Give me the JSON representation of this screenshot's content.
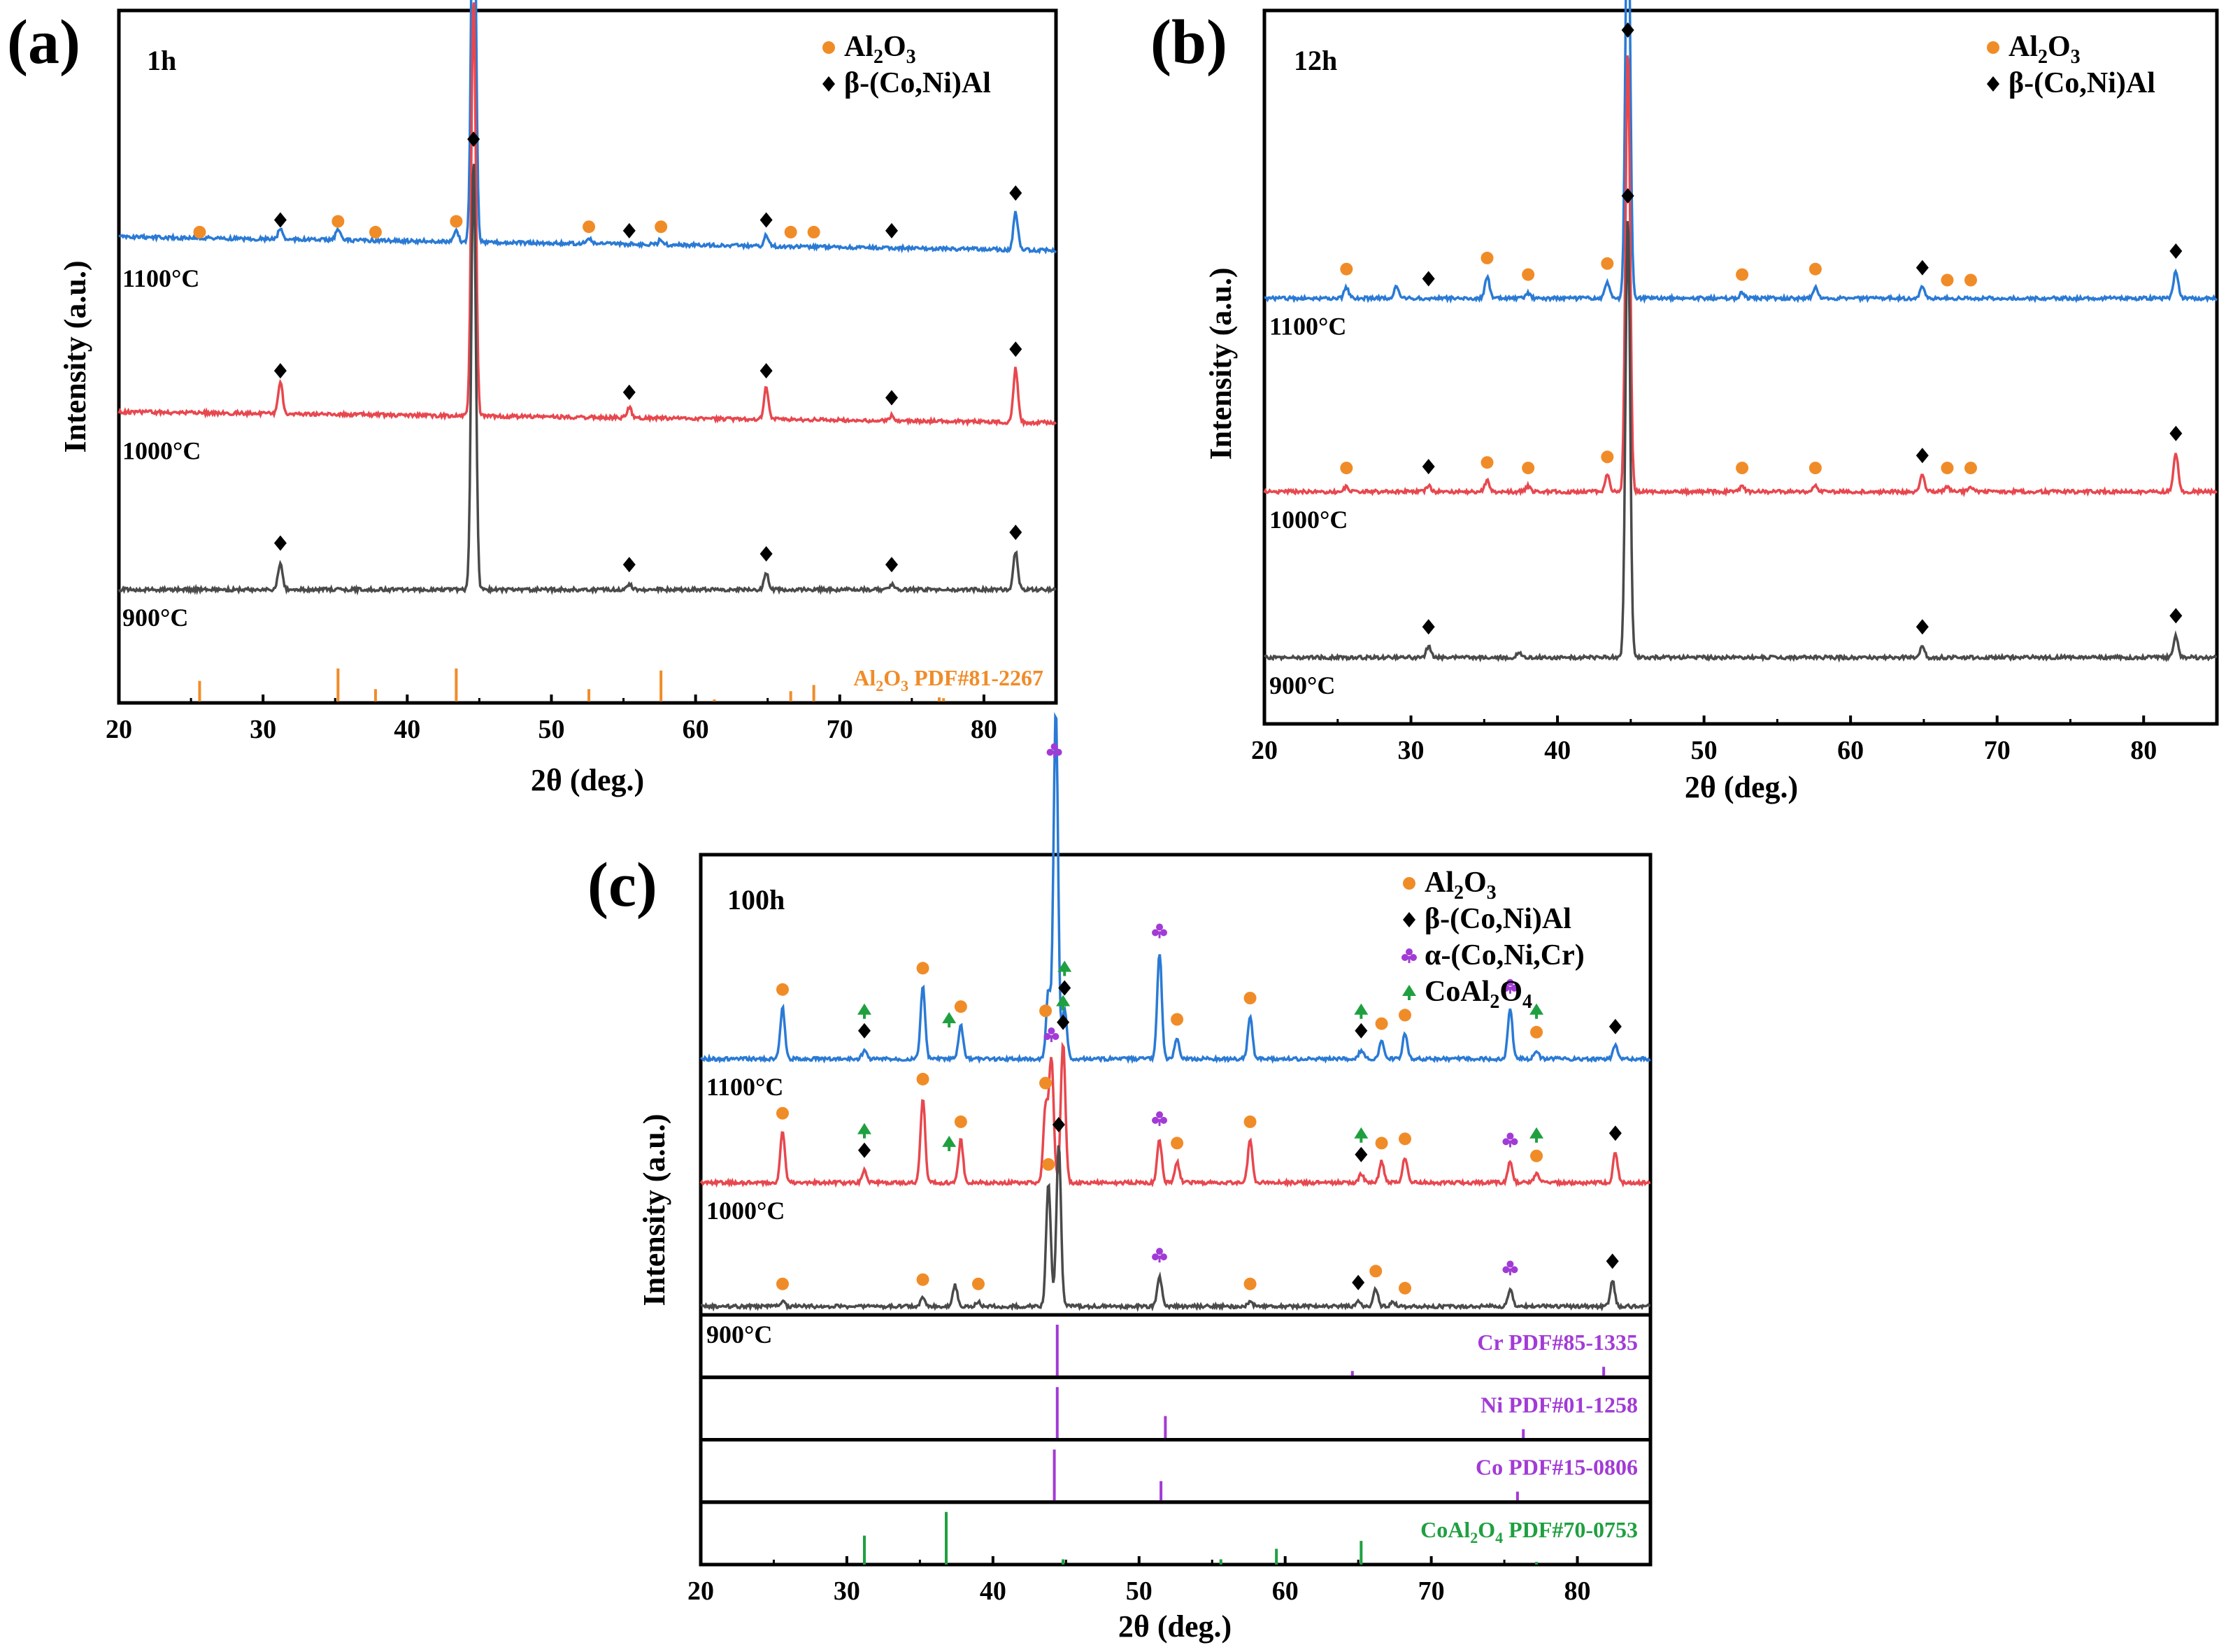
{
  "chart_data": [
    {
      "panel_label": "(a)",
      "type": "line",
      "time_label": "1h",
      "xlabel": "2θ (deg.)",
      "ylabel": "Intensity (a.u.)",
      "xlim": [
        20,
        85
      ],
      "xticks": [
        "20",
        "30",
        "40",
        "50",
        "60",
        "70",
        "80"
      ],
      "legend": [
        {
          "marker": "circle",
          "label": "Al",
          "sub": [
            "2",
            "3"
          ],
          "mid": "O",
          "text": "Al₂O₃",
          "color": "#f08c28"
        },
        {
          "marker": "diamond",
          "label": "β-(Co,Ni)Al",
          "color": "#000000"
        }
      ],
      "series": [
        {
          "name": "1100°C",
          "color": "#2a7ad5",
          "baseline_frac": 0.73,
          "slope_frac": 0.025,
          "peaks": [
            [
              31.2,
              0.02
            ],
            [
              35.2,
              0.02
            ],
            [
              43.4,
              0.02
            ],
            [
              44.6,
              0.8
            ],
            [
              52.6,
              0.01
            ],
            [
              57.6,
              0.01
            ],
            [
              64.9,
              0.02
            ],
            [
              82.2,
              0.07
            ]
          ]
        },
        {
          "name": "1000°C",
          "color": "#e8474e",
          "baseline_frac": 0.41,
          "slope_frac": 0.02,
          "peaks": [
            [
              31.2,
              0.06
            ],
            [
              44.6,
              0.78
            ],
            [
              55.4,
              0.02
            ],
            [
              64.9,
              0.06
            ],
            [
              73.6,
              0.01
            ],
            [
              82.2,
              0.1
            ]
          ]
        },
        {
          "name": "900°C",
          "color": "#4a4a4a",
          "baseline_frac": 0.1,
          "slope_frac": 0.0,
          "peaks": [
            [
              31.2,
              0.05
            ],
            [
              44.6,
              0.8
            ],
            [
              55.4,
              0.01
            ],
            [
              64.9,
              0.03
            ],
            [
              73.6,
              0.01
            ],
            [
              82.2,
              0.07
            ]
          ]
        }
      ],
      "markers": [
        {
          "series": "1100°C",
          "al2o3": [
            25.6,
            35.2,
            37.8,
            43.4,
            52.6,
            57.6,
            66.6,
            68.2
          ],
          "beta": [
            31.2,
            44.6,
            55.4,
            64.9,
            73.6,
            82.2
          ]
        },
        {
          "series": "1000°C",
          "al2o3": [],
          "beta": [
            31.2,
            44.6,
            55.4,
            64.9,
            73.6,
            82.2
          ]
        },
        {
          "series": "900°C",
          "al2o3": [],
          "beta": [
            31.2,
            44.6,
            55.4,
            64.9,
            73.6,
            82.2
          ]
        }
      ],
      "reference": [
        {
          "label": "Al",
          "sub": [
            "2",
            "3"
          ],
          "text": "Al₂O₃ PDF#81-2267",
          "mid": "O",
          "tail": " PDF#81-2267",
          "color": "#f08c28",
          "lines": [
            [
              25.6,
              0.5
            ],
            [
              35.2,
              0.8
            ],
            [
              37.8,
              0.3
            ],
            [
              43.4,
              0.8
            ],
            [
              52.6,
              0.3
            ],
            [
              57.6,
              0.75
            ],
            [
              61.3,
              0.05
            ],
            [
              66.6,
              0.25
            ],
            [
              68.2,
              0.4
            ],
            [
              76.9,
              0.1
            ],
            [
              77.2,
              0.08
            ]
          ]
        }
      ]
    },
    {
      "panel_label": "(b)",
      "type": "line",
      "time_label": "12h",
      "xlabel": "2θ (deg.)",
      "ylabel": "Intensity (a.u.)",
      "xlim": [
        20,
        85
      ],
      "xticks": [
        "20",
        "30",
        "40",
        "50",
        "60",
        "70",
        "80"
      ],
      "legend": [
        {
          "marker": "circle",
          "label": "Al",
          "sub": [
            "2",
            "3"
          ],
          "mid": "O",
          "text": "Al₂O₃",
          "color": "#f08c28"
        },
        {
          "marker": "diamond",
          "label": "β-(Co,Ni)Al",
          "color": "#000000"
        }
      ],
      "series": [
        {
          "name": "1100°C",
          "color": "#2a7ad5",
          "baseline_frac": 0.65,
          "slope_frac": 0.0,
          "peaks": [
            [
              25.6,
              0.02
            ],
            [
              29.0,
              0.02
            ],
            [
              35.2,
              0.04
            ],
            [
              38.0,
              0.01
            ],
            [
              43.4,
              0.03
            ],
            [
              44.8,
              0.8
            ],
            [
              52.6,
              0.01
            ],
            [
              57.6,
              0.02
            ],
            [
              64.9,
              0.02
            ],
            [
              82.2,
              0.05
            ]
          ]
        },
        {
          "name": "1000°C",
          "color": "#e8474e",
          "baseline_frac": 0.3,
          "slope_frac": 0.0,
          "peaks": [
            [
              25.6,
              0.01
            ],
            [
              31.2,
              0.01
            ],
            [
              35.2,
              0.02
            ],
            [
              38.0,
              0.01
            ],
            [
              43.4,
              0.03
            ],
            [
              44.8,
              0.8
            ],
            [
              52.6,
              0.01
            ],
            [
              57.6,
              0.01
            ],
            [
              64.9,
              0.03
            ],
            [
              66.6,
              0.01
            ],
            [
              68.2,
              0.01
            ],
            [
              82.2,
              0.07
            ]
          ]
        },
        {
          "name": "900°C",
          "color": "#4a4a4a",
          "baseline_frac": 0.0,
          "slope_frac": 0.0,
          "peaks": [
            [
              31.2,
              0.02
            ],
            [
              37.4,
              0.01
            ],
            [
              44.8,
              0.8
            ],
            [
              64.9,
              0.02
            ],
            [
              82.2,
              0.04
            ]
          ]
        }
      ],
      "markers": [
        {
          "series": "1100°C",
          "al2o3": [
            25.6,
            35.2,
            38.0,
            43.4,
            52.6,
            57.6,
            66.6,
            68.2
          ],
          "beta": [
            31.2,
            44.8,
            64.9,
            82.2
          ]
        },
        {
          "series": "1000°C",
          "al2o3": [
            25.6,
            35.2,
            38.0,
            43.4,
            52.6,
            57.6,
            66.6,
            68.2
          ],
          "beta": [
            31.2,
            44.8,
            64.9,
            82.2
          ]
        },
        {
          "series": "900°C",
          "al2o3": [],
          "beta": [
            31.2,
            44.8,
            64.9,
            82.2
          ]
        }
      ],
      "reference": []
    },
    {
      "panel_label": "(c)",
      "type": "line",
      "time_label": "100h",
      "xlabel": "2θ (deg.)",
      "ylabel": "Intensity (a.u.)",
      "xlim": [
        20,
        85
      ],
      "xticks": [
        "20",
        "30",
        "40",
        "50",
        "60",
        "70",
        "80"
      ],
      "legend": [
        {
          "marker": "circle",
          "label": "Al",
          "sub": [
            "2",
            "3"
          ],
          "mid": "O",
          "text": "Al₂O₃",
          "color": "#f08c28"
        },
        {
          "marker": "diamond",
          "label": "β-(Co,Ni)Al",
          "color": "#000000"
        },
        {
          "marker": "club",
          "label": "α-(Co,Ni,Cr)",
          "color": "#a23bd6"
        },
        {
          "marker": "spade",
          "label": "CoAl",
          "sub": [
            "2",
            "4"
          ],
          "mid": "O",
          "text": "CoAl₂O₄",
          "color": "#1fa040"
        }
      ],
      "series": [
        {
          "name": "1100°C",
          "color": "#2a7ad5",
          "baseline_frac": 0.6,
          "slope_frac": 0.0,
          "peaks": [
            [
              25.6,
              0.12
            ],
            [
              31.2,
              0.02
            ],
            [
              35.2,
              0.17
            ],
            [
              37.8,
              0.08
            ],
            [
              43.8,
              0.16
            ],
            [
              44.3,
              0.82
            ],
            [
              44.9,
              0.12
            ],
            [
              51.4,
              0.25
            ],
            [
              52.6,
              0.05
            ],
            [
              57.6,
              0.1
            ],
            [
              65.2,
              0.02
            ],
            [
              66.6,
              0.04
            ],
            [
              68.2,
              0.06
            ],
            [
              75.4,
              0.12
            ],
            [
              77.2,
              0.02
            ],
            [
              82.6,
              0.03
            ]
          ]
        },
        {
          "name": "1000°C",
          "color": "#e8474e",
          "baseline_frac": 0.31,
          "slope_frac": 0.0,
          "peaks": [
            [
              25.6,
              0.12
            ],
            [
              31.2,
              0.03
            ],
            [
              35.2,
              0.2
            ],
            [
              37.8,
              0.1
            ],
            [
              43.6,
              0.18
            ],
            [
              44.0,
              0.29
            ],
            [
              44.8,
              0.33
            ],
            [
              51.4,
              0.1
            ],
            [
              52.6,
              0.05
            ],
            [
              57.6,
              0.1
            ],
            [
              65.2,
              0.02
            ],
            [
              66.6,
              0.05
            ],
            [
              68.2,
              0.06
            ],
            [
              75.4,
              0.05
            ],
            [
              77.2,
              0.02
            ],
            [
              82.6,
              0.07
            ]
          ]
        },
        {
          "name": "900°C",
          "color": "#4a4a4a",
          "baseline_frac": 0.02,
          "slope_frac": 0.0,
          "peaks": [
            [
              25.6,
              0.01
            ],
            [
              35.2,
              0.02
            ],
            [
              37.4,
              0.05
            ],
            [
              39.0,
              0.01
            ],
            [
              43.8,
              0.29
            ],
            [
              44.5,
              0.38
            ],
            [
              51.4,
              0.07
            ],
            [
              57.6,
              0.01
            ],
            [
              65.0,
              0.01
            ],
            [
              66.2,
              0.04
            ],
            [
              67.4,
              0.01
            ],
            [
              75.4,
              0.04
            ],
            [
              82.4,
              0.06
            ]
          ]
        }
      ],
      "markers": [
        {
          "series": "1100°C",
          "al2o3": [
            25.6,
            35.2,
            37.8,
            43.6,
            52.6,
            57.6,
            66.6,
            68.2,
            77.2
          ],
          "beta": [
            31.2,
            44.9,
            65.2,
            82.6
          ],
          "alpha": [
            44.2,
            51.4,
            75.4
          ],
          "coal": [
            31.2,
            37.0,
            44.9,
            65.2,
            77.2
          ]
        },
        {
          "series": "1000°C",
          "al2o3": [
            25.6,
            35.2,
            37.8,
            43.6,
            52.6,
            57.6,
            66.6,
            68.2,
            77.2
          ],
          "beta": [
            31.2,
            44.8,
            65.2,
            82.6
          ],
          "alpha": [
            44.0,
            51.4,
            75.4
          ],
          "coal": [
            31.2,
            37.0,
            44.8,
            65.2,
            77.2
          ]
        },
        {
          "series": "900°C",
          "al2o3": [
            25.6,
            35.2,
            39.0,
            43.8,
            57.6,
            66.2,
            68.2
          ],
          "beta": [
            44.5,
            65.0,
            82.4
          ],
          "alpha": [
            51.4,
            75.4
          ],
          "coal": []
        }
      ],
      "reference": [
        {
          "label": "Cr PDF#85-1335",
          "text": "Cr PDF#85-1335",
          "color": "#a23bd6",
          "lines": [
            [
              44.4,
              1.0
            ],
            [
              64.6,
              0.12
            ],
            [
              81.8,
              0.2
            ]
          ]
        },
        {
          "label": "Ni PDF#01-1258",
          "text": "Ni PDF#01-1258",
          "color": "#a23bd6",
          "lines": [
            [
              44.4,
              1.0
            ],
            [
              51.8,
              0.45
            ],
            [
              76.3,
              0.2
            ]
          ]
        },
        {
          "label": "Co PDF#15-0806",
          "text": "Co PDF#15-0806",
          "color": "#a23bd6",
          "lines": [
            [
              44.2,
              1.0
            ],
            [
              51.5,
              0.4
            ],
            [
              75.9,
              0.2
            ]
          ]
        },
        {
          "label": "CoAl",
          "sub": [
            "2",
            "4"
          ],
          "text": "CoAl₂O₄ PDF#70-0753",
          "mid": "O",
          "tail": " PDF#70-0753",
          "color": "#1fa040",
          "lines": [
            [
              31.2,
              0.55
            ],
            [
              36.8,
              1.0
            ],
            [
              44.8,
              0.1
            ],
            [
              55.6,
              0.1
            ],
            [
              59.4,
              0.3
            ],
            [
              65.2,
              0.45
            ],
            [
              77.2,
              0.05
            ]
          ]
        }
      ]
    }
  ]
}
